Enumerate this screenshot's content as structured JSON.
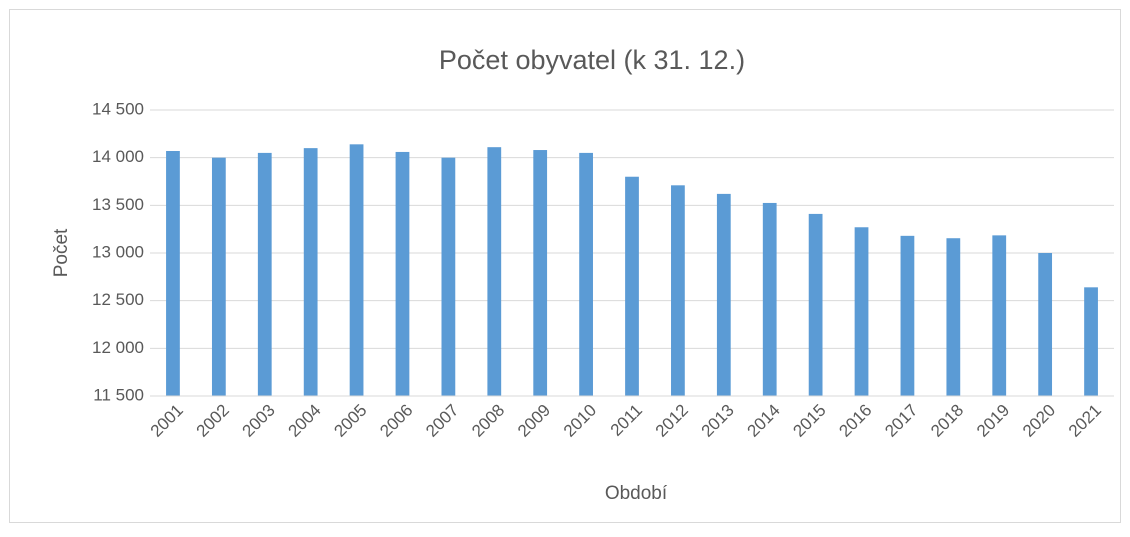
{
  "chart_data": {
    "type": "bar",
    "title": "Počet obyvatel (k 31. 12.)",
    "x_label": "Období",
    "y_label": "Počet",
    "categories": [
      "2001",
      "2002",
      "2003",
      "2004",
      "2005",
      "2006",
      "2007",
      "2008",
      "2009",
      "2010",
      "2011",
      "2012",
      "2013",
      "2014",
      "2015",
      "2016",
      "2017",
      "2018",
      "2019",
      "2020",
      "2021"
    ],
    "values": [
      14070,
      14000,
      14050,
      14100,
      14140,
      14060,
      14000,
      14110,
      14080,
      14050,
      13800,
      13710,
      13620,
      13525,
      13410,
      13270,
      13180,
      13155,
      13185,
      13000,
      12640
    ],
    "color": "#5b9bd5",
    "ylim": [
      11500,
      14500
    ],
    "yticks": [
      {
        "value": 11500,
        "label": "11 500"
      },
      {
        "value": 12000,
        "label": "12 000"
      },
      {
        "value": 12500,
        "label": "12 500"
      },
      {
        "value": 13000,
        "label": "13 000"
      },
      {
        "value": 13500,
        "label": "13 500"
      },
      {
        "value": 14000,
        "label": "14 000"
      },
      {
        "value": 14500,
        "label": "14 500"
      }
    ],
    "grid": true
  }
}
